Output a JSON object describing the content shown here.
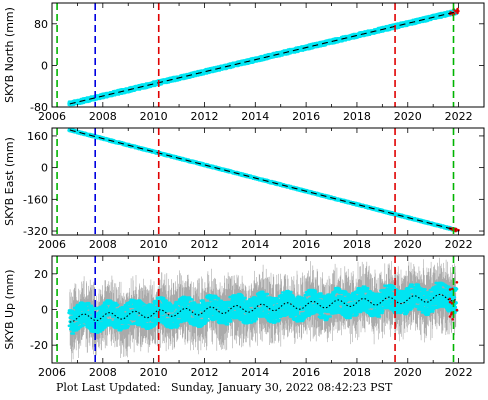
{
  "footer": {
    "label": "Plot Last Updated:",
    "timestamp": "Sunday, January 30, 2022 08:42:23 PST"
  },
  "colors": {
    "data": "#00e5f2",
    "error": "#aaaaaa",
    "model": "#000000",
    "outlier": "#e00000",
    "green": "#00b400",
    "blue": "#0000e0",
    "red": "#e00000"
  },
  "chart_data": [
    {
      "type": "scatter",
      "ylabel": "SKYB North (mm)",
      "xlim": [
        2006,
        2023
      ],
      "ylim": [
        -80,
        120
      ],
      "yticks": [
        -80,
        0,
        80
      ],
      "xticks": [
        2006,
        2008,
        2010,
        2012,
        2014,
        2016,
        2018,
        2020,
        2022
      ],
      "series_trend": {
        "x": [
          2006.7,
          2021.9
        ],
        "y": [
          -74,
          103
        ]
      },
      "scatter_halfwidth": 4,
      "error_halfwidth": 0,
      "vlines": [
        {
          "x": 2006.2,
          "color": "green"
        },
        {
          "x": 2007.7,
          "color": "blue"
        },
        {
          "x": 2010.2,
          "color": "red"
        },
        {
          "x": 2019.5,
          "color": "red"
        },
        {
          "x": 2021.8,
          "color": "green"
        }
      ]
    },
    {
      "type": "scatter",
      "ylabel": "SKYB East (mm)",
      "xlim": [
        2006,
        2023
      ],
      "ylim": [
        -340,
        200
      ],
      "yticks": [
        -320,
        -160,
        0,
        160
      ],
      "xticks": [
        2006,
        2008,
        2010,
        2012,
        2014,
        2016,
        2018,
        2020,
        2022
      ],
      "series_trend": {
        "x": [
          2006.7,
          2021.9
        ],
        "y": [
          190,
          -315
        ]
      },
      "scatter_halfwidth": 5,
      "error_halfwidth": 0,
      "vlines": [
        {
          "x": 2006.2,
          "color": "green"
        },
        {
          "x": 2007.7,
          "color": "blue"
        },
        {
          "x": 2010.2,
          "color": "red"
        },
        {
          "x": 2019.5,
          "color": "red"
        },
        {
          "x": 2021.8,
          "color": "green"
        }
      ]
    },
    {
      "type": "scatter",
      "ylabel": "SKYB Up (mm)",
      "xlim": [
        2006,
        2023
      ],
      "ylim": [
        -30,
        30
      ],
      "yticks": [
        -20,
        0,
        20
      ],
      "xticks": [
        2006,
        2008,
        2010,
        2012,
        2014,
        2016,
        2018,
        2020,
        2022
      ],
      "series_trend": {
        "x": [
          2006.7,
          2021.9
        ],
        "y": [
          -5,
          7
        ]
      },
      "seasonal_amplitude": 2,
      "scatter_halfwidth": 7,
      "error_halfwidth": 14,
      "vlines": [
        {
          "x": 2006.2,
          "color": "green"
        },
        {
          "x": 2007.7,
          "color": "blue"
        },
        {
          "x": 2010.2,
          "color": "red"
        },
        {
          "x": 2019.5,
          "color": "red"
        },
        {
          "x": 2021.8,
          "color": "green"
        }
      ]
    }
  ]
}
